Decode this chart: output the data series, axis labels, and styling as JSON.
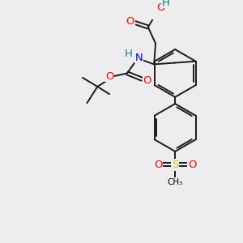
{
  "bg_color": "#ededef",
  "atom_colors": {
    "O": "#ff0000",
    "N": "#0000cc",
    "S": "#cccc00",
    "H": "#008080",
    "C": "#000000"
  },
  "bond_color": "#1a1a1a",
  "bond_lw": 1.4
}
